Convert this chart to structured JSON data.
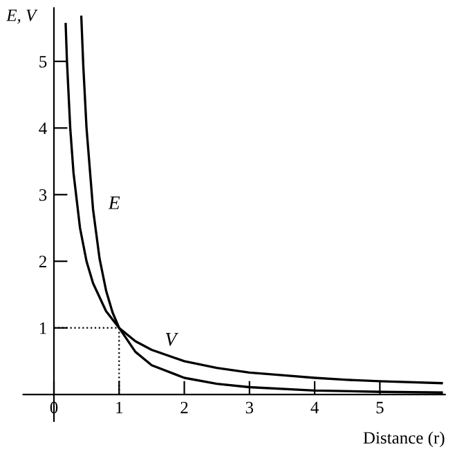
{
  "chart_data": {
    "type": "line",
    "xlabel": "Distance (r)",
    "ylabel": "E, V",
    "xlim": [
      -0.47,
      6.0
    ],
    "ylim": [
      -0.4,
      5.8
    ],
    "xticks": [
      {
        "value": 0,
        "label": "0"
      },
      1,
      2,
      3,
      4,
      5
    ],
    "yticks": [
      1,
      2,
      3,
      4,
      5
    ],
    "grid": false,
    "legend": false,
    "marker": "none",
    "series": [
      {
        "name": "V",
        "color": "#000000",
        "x": [
          0.18,
          0.2,
          0.25,
          0.3,
          0.4,
          0.5,
          0.6,
          0.8,
          1,
          1.25,
          1.5,
          2,
          2.5,
          3,
          3.5,
          4,
          4.5,
          5,
          5.95
        ],
        "values": [
          5.56,
          5,
          4,
          3.33,
          2.5,
          2,
          1.67,
          1.25,
          1,
          0.8,
          0.67,
          0.5,
          0.4,
          0.33,
          0.29,
          0.25,
          0.22,
          0.2,
          0.17
        ]
      },
      {
        "name": "E",
        "color": "#000000",
        "x": [
          0.42,
          0.45,
          0.5,
          0.6,
          0.7,
          0.8,
          0.9,
          1,
          1.25,
          1.5,
          2,
          2.5,
          3,
          4,
          5,
          5.95
        ],
        "values": [
          5.67,
          4.94,
          4,
          2.78,
          2.04,
          1.56,
          1.23,
          1,
          0.64,
          0.44,
          0.25,
          0.16,
          0.11,
          0.06,
          0.04,
          0.03
        ]
      },
      {
        "color": "#000000",
        "line_style": "dotted",
        "x": [
          0,
          1,
          1
        ],
        "values": [
          1,
          1,
          0
        ]
      }
    ]
  }
}
